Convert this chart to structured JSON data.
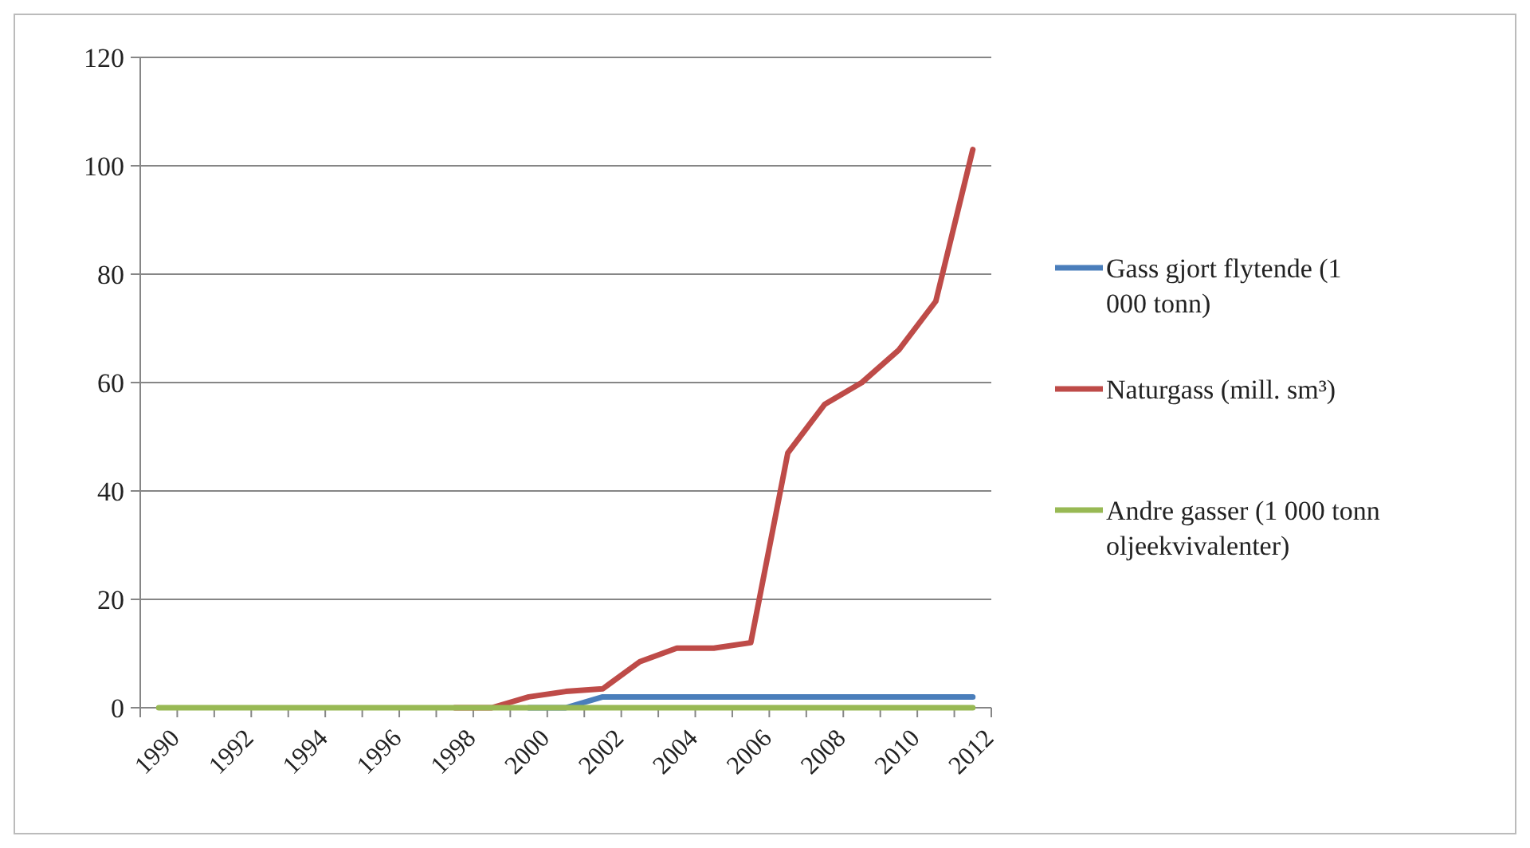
{
  "chart_data": {
    "type": "line",
    "categories": [
      "1990",
      null,
      "1992",
      null,
      "1994",
      null,
      "1996",
      null,
      "1998",
      null,
      "2000",
      null,
      "2002",
      null,
      "2004",
      null,
      "2006",
      null,
      "2008",
      null,
      "2010",
      null,
      "2012"
    ],
    "series": [
      {
        "name": "Gass gjort flytende (1 000 tonn)",
        "color": "#4a7ebb",
        "values": [
          null,
          null,
          null,
          null,
          null,
          null,
          null,
          null,
          null,
          null,
          0,
          0,
          2,
          2,
          2,
          2,
          2,
          2,
          2,
          2,
          2,
          2,
          2
        ]
      },
      {
        "name": "Naturgass (mill. sm³)",
        "color": "#be4b48",
        "values": [
          null,
          null,
          null,
          null,
          null,
          null,
          null,
          null,
          0,
          0,
          2,
          3,
          3.5,
          8.5,
          11,
          11,
          12,
          47,
          56,
          60,
          66,
          75,
          103
        ]
      },
      {
        "name": "Andre gasser (1 000 tonn oljeekvivalenter)",
        "color": "#98b954",
        "values": [
          0,
          0,
          0,
          0,
          0,
          0,
          0,
          0,
          0,
          0,
          0,
          0,
          0,
          0,
          0,
          0,
          0,
          0,
          0,
          0,
          0,
          0,
          0
        ]
      }
    ],
    "ylim": [
      0,
      120
    ],
    "yticks": [
      0,
      20,
      40,
      60,
      80,
      100,
      120
    ],
    "grid": "y",
    "legend": "right",
    "marker": "none",
    "line_style": "solid"
  }
}
